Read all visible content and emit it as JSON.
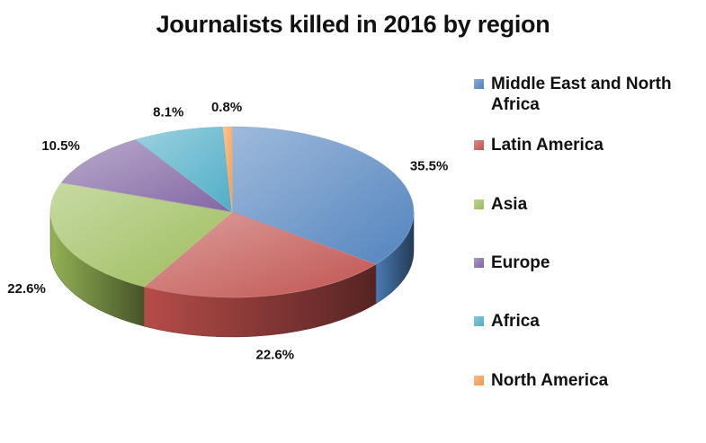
{
  "chart_data": {
    "type": "pie",
    "title": "Journalists killed in 2016 by region",
    "categories": [
      "Middle East and North Africa",
      "Latin America",
      "Asia",
      "Europe",
      "Africa",
      "North America"
    ],
    "values": [
      35.5,
      22.6,
      22.6,
      10.5,
      8.1,
      0.8
    ],
    "value_labels": [
      "35.5%",
      "22.6%",
      "22.6%",
      "10.5%",
      "8.1%",
      "0.8%"
    ],
    "colors": [
      "#4f81bd",
      "#c0504d",
      "#9bbb59",
      "#8064a2",
      "#4bacc6",
      "#f79646"
    ],
    "style": "3d-pie",
    "legend_position": "right"
  }
}
